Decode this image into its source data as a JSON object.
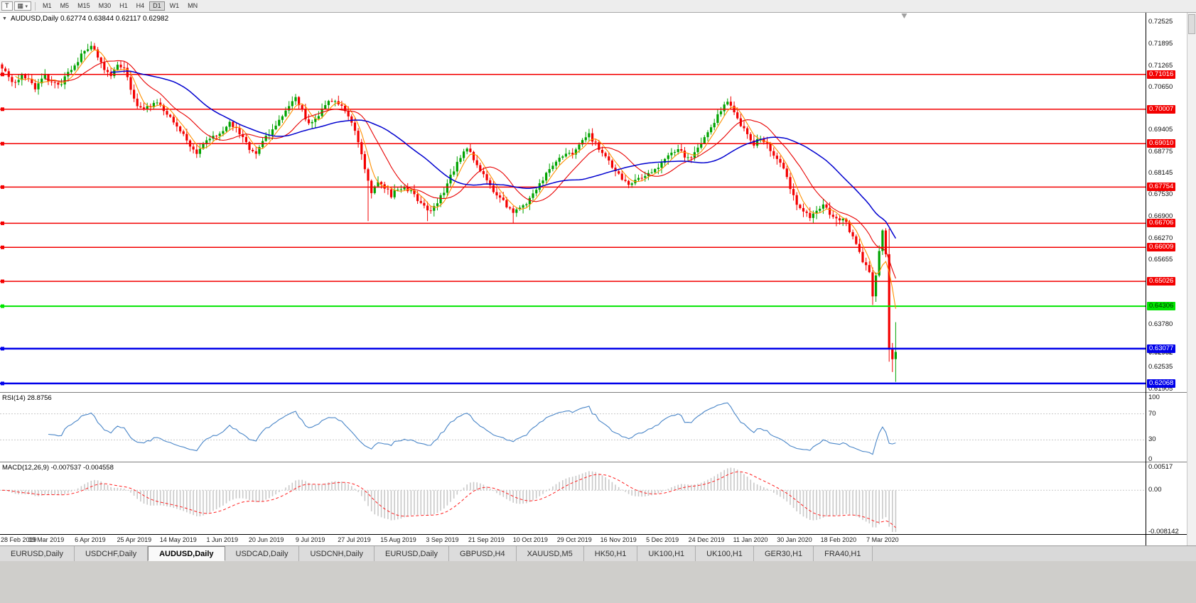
{
  "colors": {
    "bull": "#00a300",
    "bear": "#f30000",
    "axis_text": "#111111"
  },
  "toolbar": {
    "t_button": "T",
    "timeframes": [
      "M1",
      "M5",
      "M15",
      "M30",
      "H1",
      "H4",
      "D1",
      "W1",
      "MN"
    ],
    "active_timeframe": "D1"
  },
  "chart": {
    "header": "AUDUSD,Daily  0.62774 0.63844 0.62117 0.62982",
    "rsi_title": "RSI(14) 28.8756",
    "macd_title": "MACD(12,26,9) -0.007537 -0.004558"
  },
  "chart_data": {
    "type": "candlestick",
    "symbol": "AUDUSD",
    "timeframe": "Daily",
    "current_bar": {
      "open": 0.62774,
      "high": 0.63844,
      "low": 0.62117,
      "close": 0.62982
    },
    "price_range": [
      0.6182,
      0.728
    ],
    "bars_total": 272,
    "bar_spacing": 4.64,
    "label_step_bars": 13.35,
    "x_labels": [
      "28 Feb 2019",
      "19 Mar 2019",
      "6 Apr 2019",
      "25 Apr 2019",
      "14 May 2019",
      "1 Jun 2019",
      "20 Jun 2019",
      "9 Jul 2019",
      "27 Jul 2019",
      "15 Aug 2019",
      "3 Sep 2019",
      "21 Sep 2019",
      "10 Oct 2019",
      "29 Oct 2019",
      "16 Nov 2019",
      "5 Dec 2019",
      "24 Dec 2019",
      "11 Jan 2020",
      "30 Jan 2020",
      "18 Feb 2020",
      "7 Mar 2020"
    ],
    "y_ticks": [
      "0.72525",
      "0.71895",
      "0.71265",
      "0.70650",
      "0.69405",
      "0.68775",
      "0.68145",
      "0.67530",
      "0.66900",
      "0.66270",
      "0.65655",
      "0.63780",
      "0.62535",
      "0.61905"
    ],
    "current_price_label": "0.62982",
    "horizontal_lines": [
      {
        "value": 0.71016,
        "label": "0.71016",
        "color": "#f30000",
        "text": "#ffffff",
        "width": 1.5
      },
      {
        "value": 0.70007,
        "label": "0.70007",
        "color": "#f30000",
        "text": "#ffffff",
        "width": 1.5
      },
      {
        "value": 0.6901,
        "label": "0.69010",
        "color": "#f30000",
        "text": "#ffffff",
        "width": 1.5
      },
      {
        "value": 0.67754,
        "label": "0.67754",
        "color": "#f30000",
        "text": "#ffffff",
        "width": 1.5
      },
      {
        "value": 0.66706,
        "label": "0.66706",
        "color": "#f30000",
        "text": "#ffffff",
        "width": 1.5
      },
      {
        "value": 0.66009,
        "label": "0.66009",
        "color": "#f30000",
        "text": "#ffffff",
        "width": 1.5
      },
      {
        "value": 0.65026,
        "label": "0.65026",
        "color": "#f30000",
        "text": "#ffffff",
        "width": 1.5
      },
      {
        "value": 0.64306,
        "label": "0.64306",
        "color": "#00e400",
        "text": "#003300",
        "width": 2
      },
      {
        "value": 0.63077,
        "label": "0.63077",
        "color": "#0000ea",
        "text": "#ffffff",
        "width": 2.5
      },
      {
        "value": 0.62068,
        "label": "0.62068",
        "color": "#0000ea",
        "text": "#ffffff",
        "width": 2.5
      }
    ],
    "moving_averages": [
      {
        "period": 5,
        "color": "#ff9000",
        "width": 1.1
      },
      {
        "period": 14,
        "color": "#e80000",
        "width": 1.1
      },
      {
        "period": 34,
        "color": "#0000cf",
        "width": 1.5
      }
    ],
    "price_path": [
      [
        0,
        0.7115
      ],
      [
        2,
        0.7095
      ],
      [
        4,
        0.7075
      ],
      [
        6,
        0.7105
      ],
      [
        8,
        0.7085
      ],
      [
        10,
        0.706
      ],
      [
        13,
        0.7095
      ],
      [
        15,
        0.7075
      ],
      [
        17,
        0.7068
      ],
      [
        19,
        0.709
      ],
      [
        21,
        0.7115
      ],
      [
        23,
        0.714
      ],
      [
        25,
        0.7175
      ],
      [
        27,
        0.7185
      ],
      [
        29,
        0.715
      ],
      [
        31,
        0.7115
      ],
      [
        33,
        0.7095
      ],
      [
        35,
        0.713
      ],
      [
        37,
        0.7125
      ],
      [
        39,
        0.706
      ],
      [
        41,
        0.7015
      ],
      [
        43,
        0.6998
      ],
      [
        45,
        0.701
      ],
      [
        47,
        0.7018
      ],
      [
        49,
        0.6998
      ],
      [
        51,
        0.6978
      ],
      [
        53,
        0.6952
      ],
      [
        55,
        0.6928
      ],
      [
        57,
        0.6898
      ],
      [
        59,
        0.6878
      ],
      [
        61,
        0.6898
      ],
      [
        63,
        0.6918
      ],
      [
        65,
        0.6928
      ],
      [
        67,
        0.6938
      ],
      [
        69,
        0.6958
      ],
      [
        71,
        0.6948
      ],
      [
        73,
        0.6918
      ],
      [
        75,
        0.6888
      ],
      [
        77,
        0.6876
      ],
      [
        79,
        0.6906
      ],
      [
        81,
        0.693
      ],
      [
        83,
        0.6955
      ],
      [
        85,
        0.698
      ],
      [
        87,
        0.7015
      ],
      [
        89,
        0.7035
      ],
      [
        91,
        0.6995
      ],
      [
        93,
        0.6958
      ],
      [
        95,
        0.6972
      ],
      [
        97,
        0.7
      ],
      [
        99,
        0.7022
      ],
      [
        101,
        0.703
      ],
      [
        103,
        0.7005
      ],
      [
        105,
        0.698
      ],
      [
        107,
        0.6938
      ],
      [
        109,
        0.6868
      ],
      [
        111,
        0.6798
      ],
      [
        112,
        0.6758
      ],
      [
        114,
        0.6792
      ],
      [
        116,
        0.6775
      ],
      [
        118,
        0.6752
      ],
      [
        120,
        0.6772
      ],
      [
        122,
        0.6778
      ],
      [
        124,
        0.676
      ],
      [
        126,
        0.6738
      ],
      [
        128,
        0.6718
      ],
      [
        130,
        0.6708
      ],
      [
        132,
        0.6735
      ],
      [
        134,
        0.6762
      ],
      [
        136,
        0.6806
      ],
      [
        138,
        0.6842
      ],
      [
        140,
        0.6872
      ],
      [
        141,
        0.6886
      ],
      [
        143,
        0.6856
      ],
      [
        145,
        0.6822
      ],
      [
        147,
        0.6792
      ],
      [
        149,
        0.6766
      ],
      [
        151,
        0.6746
      ],
      [
        153,
        0.6722
      ],
      [
        155,
        0.67
      ],
      [
        157,
        0.6714
      ],
      [
        159,
        0.673
      ],
      [
        161,
        0.6756
      ],
      [
        163,
        0.6786
      ],
      [
        165,
        0.6812
      ],
      [
        167,
        0.684
      ],
      [
        169,
        0.6856
      ],
      [
        171,
        0.6866
      ],
      [
        174,
        0.688
      ],
      [
        176,
        0.6906
      ],
      [
        178,
        0.6926
      ],
      [
        180,
        0.69
      ],
      [
        182,
        0.687
      ],
      [
        184,
        0.6846
      ],
      [
        186,
        0.6822
      ],
      [
        188,
        0.68
      ],
      [
        190,
        0.6786
      ],
      [
        192,
        0.6792
      ],
      [
        194,
        0.6806
      ],
      [
        196,
        0.6816
      ],
      [
        198,
        0.683
      ],
      [
        201,
        0.6852
      ],
      [
        203,
        0.6872
      ],
      [
        205,
        0.6886
      ],
      [
        207,
        0.6866
      ],
      [
        209,
        0.6856
      ],
      [
        211,
        0.6886
      ],
      [
        214,
        0.693
      ],
      [
        216,
        0.6966
      ],
      [
        218,
        0.7
      ],
      [
        220,
        0.7024
      ],
      [
        222,
        0.699
      ],
      [
        224,
        0.6956
      ],
      [
        226,
        0.6926
      ],
      [
        228,
        0.69
      ],
      [
        230,
        0.6916
      ],
      [
        232,
        0.69
      ],
      [
        234,
        0.687
      ],
      [
        236,
        0.685
      ],
      [
        238,
        0.68
      ],
      [
        240,
        0.6746
      ],
      [
        241,
        0.6722
      ],
      [
        243,
        0.67
      ],
      [
        245,
        0.669
      ],
      [
        247,
        0.6706
      ],
      [
        249,
        0.672
      ],
      [
        251,
        0.67
      ],
      [
        253,
        0.668
      ],
      [
        255,
        0.669
      ],
      [
        257,
        0.665
      ],
      [
        259,
        0.6606
      ],
      [
        261,
        0.656
      ],
      [
        263,
        0.6532
      ],
      [
        264,
        0.6465
      ],
      [
        265,
        0.6525
      ],
      [
        266,
        0.6585
      ],
      [
        267,
        0.6645
      ],
      [
        268,
        0.6585
      ],
      [
        269,
        0.631
      ],
      [
        270,
        0.6277
      ],
      [
        271,
        0.62982
      ]
    ],
    "bar_overrides": {
      "27": {
        "high": 0.7197
      },
      "89": {
        "high": 0.7045
      },
      "111": {
        "low": 0.6677
      },
      "129": {
        "low": 0.6677
      },
      "155": {
        "low": 0.6671
      },
      "220": {
        "high": 0.7032
      },
      "253": {
        "low": 0.6662
      },
      "264": {
        "low": 0.6434
      },
      "269": {
        "high": 0.6655,
        "low": 0.627,
        "close": 0.631
      },
      "270": {
        "low": 0.624,
        "close": 0.6277
      },
      "271": {
        "open": 0.62774,
        "high": 0.63844,
        "low": 0.62117,
        "close": 0.62982
      }
    },
    "indicators": [
      {
        "name": "RSI",
        "period": 14,
        "value": 28.8756,
        "levels": [
          70,
          30
        ],
        "axis_labels": [
          "100",
          "70",
          "30",
          "0"
        ],
        "range": [
          0,
          100
        ],
        "color": "#4a86c8"
      },
      {
        "name": "MACD",
        "fast": 12,
        "slow": 26,
        "signal": 9,
        "values": [
          -0.007537,
          -0.004558
        ],
        "axis_labels": [
          "0.00517",
          "0.00",
          "-0.008142"
        ],
        "range": [
          -0.008142,
          0.00517
        ],
        "histogram_color": "#c9c9c9",
        "signal_color": "#ff2020"
      }
    ]
  },
  "tabs": {
    "items": [
      {
        "label": "EURUSD,Daily",
        "active": false
      },
      {
        "label": "USDCHF,Daily",
        "active": false
      },
      {
        "label": "AUDUSD,Daily",
        "active": true
      },
      {
        "label": "USDCAD,Daily",
        "active": false
      },
      {
        "label": "USDCNH,Daily",
        "active": false
      },
      {
        "label": "EURUSD,Daily",
        "active": false
      },
      {
        "label": "GBPUSD,H4",
        "active": false
      },
      {
        "label": "XAUUSD,M5",
        "active": false
      },
      {
        "label": "HK50,H1",
        "active": false
      },
      {
        "label": "UK100,H1",
        "active": false
      },
      {
        "label": "UK100,H1",
        "active": false
      },
      {
        "label": "GER30,H1",
        "active": false
      },
      {
        "label": "FRA40,H1",
        "active": false
      }
    ]
  }
}
